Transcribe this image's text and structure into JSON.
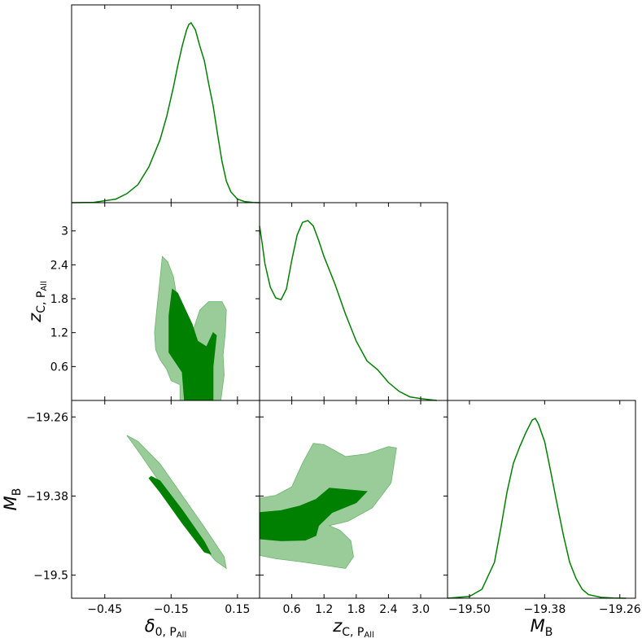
{
  "chart_data": {
    "type": "corner",
    "color_line": "#008000",
    "color_inner": "#008000",
    "color_outer": "#99cc99",
    "parameters": [
      {
        "key": "delta0",
        "label_main": "δ",
        "label_sub": "0, P",
        "label_subsub": "All",
        "range": [
          -0.6,
          0.25
        ],
        "ticks": [
          -0.45,
          -0.15,
          0.15
        ],
        "tick_labels": [
          "−0.45",
          "−0.15",
          "0.15"
        ]
      },
      {
        "key": "zc",
        "label_main": "z",
        "label_sub": "C, P",
        "label_subsub": "All",
        "range": [
          0.0,
          3.5
        ],
        "ticks": [
          0.6,
          1.2,
          1.8,
          2.4,
          3.0
        ],
        "tick_labels": [
          "0.6",
          "1.2",
          "1.8",
          "2.4",
          "3.0"
        ],
        "y_tick_labels": [
          "0.6",
          "1.2",
          "1.8",
          "2.4",
          "3"
        ]
      },
      {
        "key": "MB",
        "label_main": "M",
        "label_sub": "B",
        "label_subsub": "",
        "range": [
          -19.535,
          -19.235
        ],
        "ticks": [
          -19.5,
          -19.38,
          -19.26
        ],
        "tick_labels": [
          "−19.50",
          "−19.38",
          "−19.26"
        ],
        "y_tick_labels": [
          "−19.5",
          "−19.38",
          "−19.26"
        ]
      }
    ],
    "marginals": [
      {
        "param": "delta0",
        "x": [
          -0.6,
          -0.5,
          -0.4,
          -0.35,
          -0.3,
          -0.25,
          -0.2,
          -0.17,
          -0.14,
          -0.12,
          -0.1,
          -0.08,
          -0.07,
          -0.06,
          -0.04,
          -0.02,
          0.0,
          0.02,
          0.04,
          0.06,
          0.08,
          0.1,
          0.12,
          0.15,
          0.18,
          0.22,
          0.25
        ],
        "y": [
          0.0,
          0.002,
          0.02,
          0.05,
          0.1,
          0.2,
          0.35,
          0.48,
          0.64,
          0.76,
          0.87,
          0.96,
          0.99,
          1.0,
          0.96,
          0.87,
          0.79,
          0.66,
          0.54,
          0.38,
          0.23,
          0.12,
          0.06,
          0.02,
          0.007,
          0.001,
          0.0
        ]
      },
      {
        "param": "zc",
        "x": [
          0.0,
          0.05,
          0.1,
          0.2,
          0.3,
          0.4,
          0.5,
          0.6,
          0.7,
          0.8,
          0.9,
          1.0,
          1.1,
          1.2,
          1.4,
          1.6,
          1.8,
          2.0,
          2.2,
          2.4,
          2.6,
          2.8,
          3.0,
          3.2,
          3.3
        ],
        "y": [
          0.97,
          0.87,
          0.76,
          0.63,
          0.57,
          0.56,
          0.62,
          0.78,
          0.92,
          0.99,
          1.0,
          0.97,
          0.89,
          0.8,
          0.65,
          0.48,
          0.33,
          0.22,
          0.17,
          0.1,
          0.05,
          0.02,
          0.01,
          0.003,
          0.0
        ]
      },
      {
        "param": "MB",
        "x": [
          -19.535,
          -19.5,
          -19.48,
          -19.46,
          -19.45,
          -19.44,
          -19.43,
          -19.42,
          -19.41,
          -19.4,
          -19.395,
          -19.39,
          -19.38,
          -19.37,
          -19.36,
          -19.35,
          -19.34,
          -19.33,
          -19.32,
          -19.31,
          -19.29,
          -19.27,
          -19.25
        ],
        "y": [
          0.0,
          0.01,
          0.05,
          0.2,
          0.39,
          0.59,
          0.75,
          0.84,
          0.92,
          0.99,
          1.0,
          0.97,
          0.87,
          0.7,
          0.52,
          0.35,
          0.2,
          0.11,
          0.05,
          0.02,
          0.005,
          0.001,
          0.0
        ]
      }
    ],
    "contours_2d": [
      {
        "xparam": "delta0",
        "yparam": "zc",
        "level": "95%",
        "points": [
          [
            -0.22,
            0.9
          ],
          [
            -0.225,
            1.2
          ],
          [
            -0.215,
            1.6
          ],
          [
            -0.2,
            2.15
          ],
          [
            -0.19,
            2.55
          ],
          [
            -0.165,
            2.45
          ],
          [
            -0.14,
            2.2
          ],
          [
            -0.12,
            1.75
          ],
          [
            -0.1,
            1.5
          ],
          [
            -0.08,
            1.3
          ],
          [
            -0.05,
            1.25
          ],
          [
            -0.02,
            1.6
          ],
          [
            0.02,
            1.75
          ],
          [
            0.05,
            1.75
          ],
          [
            0.08,
            1.75
          ],
          [
            0.1,
            1.6
          ],
          [
            0.095,
            1.2
          ],
          [
            0.085,
            0.8
          ],
          [
            0.09,
            0.45
          ],
          [
            0.075,
            0.0
          ],
          [
            -0.11,
            0.0
          ],
          [
            -0.11,
            0.28
          ],
          [
            -0.15,
            0.35
          ],
          [
            -0.17,
            0.55
          ],
          [
            -0.2,
            0.72
          ]
        ]
      },
      {
        "xparam": "delta0",
        "yparam": "zc",
        "level": "68%",
        "points": [
          [
            -0.145,
            1.97
          ],
          [
            -0.16,
            1.5
          ],
          [
            -0.16,
            0.85
          ],
          [
            -0.1,
            0.5
          ],
          [
            -0.09,
            0.0
          ],
          [
            0.04,
            0.0
          ],
          [
            0.04,
            0.6
          ],
          [
            0.055,
            1.15
          ],
          [
            0.04,
            1.2
          ],
          [
            0.01,
            0.95
          ],
          [
            -0.03,
            1.05
          ],
          [
            -0.055,
            1.35
          ],
          [
            -0.085,
            1.6
          ],
          [
            -0.12,
            1.9
          ]
        ]
      },
      {
        "xparam": "delta0",
        "yparam": "MB",
        "level": "95%",
        "points": [
          [
            -0.35,
            -19.288
          ],
          [
            -0.3,
            -19.311
          ],
          [
            -0.2,
            -19.36
          ],
          [
            -0.1,
            -19.41
          ],
          [
            0.0,
            -19.458
          ],
          [
            0.05,
            -19.478
          ],
          [
            0.1,
            -19.49
          ],
          [
            0.09,
            -19.472
          ],
          [
            0.0,
            -19.427
          ],
          [
            -0.1,
            -19.379
          ],
          [
            -0.2,
            -19.331
          ],
          [
            -0.3,
            -19.297
          ]
        ]
      },
      {
        "xparam": "delta0",
        "yparam": "MB",
        "level": "68%",
        "points": [
          [
            -0.25,
            -19.353
          ],
          [
            -0.2,
            -19.374
          ],
          [
            -0.1,
            -19.421
          ],
          [
            0.0,
            -19.465
          ],
          [
            0.03,
            -19.468
          ],
          [
            0.0,
            -19.449
          ],
          [
            -0.1,
            -19.401
          ],
          [
            -0.2,
            -19.357
          ],
          [
            -0.24,
            -19.35
          ]
        ]
      },
      {
        "xparam": "zc",
        "yparam": "MB",
        "level": "95%",
        "points": [
          [
            0.0,
            -19.383
          ],
          [
            0.3,
            -19.379
          ],
          [
            0.6,
            -19.366
          ],
          [
            0.8,
            -19.33
          ],
          [
            1.0,
            -19.3
          ],
          [
            1.2,
            -19.302
          ],
          [
            1.6,
            -19.32
          ],
          [
            2.0,
            -19.316
          ],
          [
            2.4,
            -19.305
          ],
          [
            2.55,
            -19.307
          ],
          [
            2.45,
            -19.36
          ],
          [
            2.1,
            -19.398
          ],
          [
            1.65,
            -19.418
          ],
          [
            1.3,
            -19.425
          ],
          [
            1.5,
            -19.432
          ],
          [
            1.7,
            -19.448
          ],
          [
            1.75,
            -19.472
          ],
          [
            1.6,
            -19.49
          ],
          [
            0.8,
            -19.48
          ],
          [
            0.3,
            -19.475
          ],
          [
            0.0,
            -19.47
          ]
        ]
      },
      {
        "xparam": "zc",
        "yparam": "MB",
        "level": "68%",
        "points": [
          [
            0.0,
            -19.405
          ],
          [
            0.4,
            -19.402
          ],
          [
            0.75,
            -19.395
          ],
          [
            1.05,
            -19.385
          ],
          [
            1.3,
            -19.368
          ],
          [
            1.6,
            -19.37
          ],
          [
            2.0,
            -19.373
          ],
          [
            1.8,
            -19.39
          ],
          [
            1.35,
            -19.405
          ],
          [
            1.1,
            -19.425
          ],
          [
            1.05,
            -19.44
          ],
          [
            0.85,
            -19.447
          ],
          [
            0.4,
            -19.448
          ],
          [
            0.0,
            -19.445
          ]
        ]
      }
    ]
  }
}
